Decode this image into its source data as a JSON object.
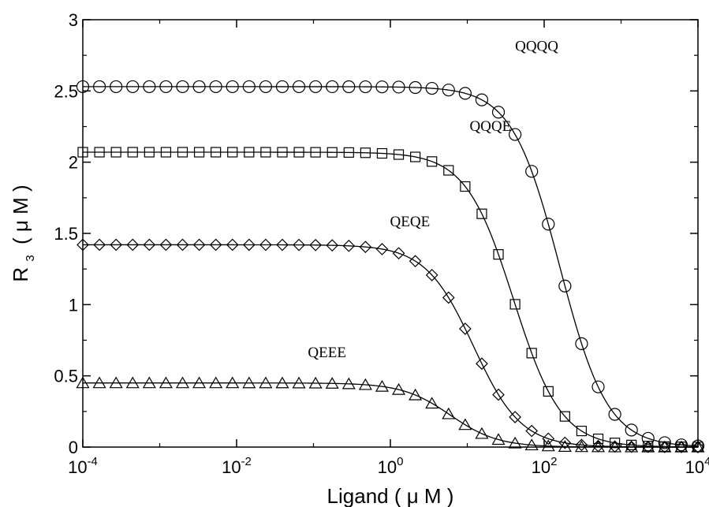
{
  "chart_data": {
    "type": "scatter",
    "xlabel": "Ligand ( μ M )",
    "ylabel": "R",
    "ylabel_sub": "3",
    "ylabel_unit": "( μ M )",
    "x_scale": "log",
    "xlim": [
      0.0001,
      10000
    ],
    "ylim": [
      0,
      3
    ],
    "grid": false,
    "legend": "none",
    "x_ticks": [
      {
        "value": 0.0001,
        "base": "10",
        "exp": "-4"
      },
      {
        "value": 0.01,
        "base": "10",
        "exp": "-2"
      },
      {
        "value": 1,
        "base": "10",
        "exp": "0"
      },
      {
        "value": 100,
        "base": "10",
        "exp": "2"
      },
      {
        "value": 10000,
        "base": "10",
        "exp": "4"
      }
    ],
    "y_ticks": [
      {
        "value": 0,
        "label": "0"
      },
      {
        "value": 0.5,
        "label": "0.5"
      },
      {
        "value": 1,
        "label": "1"
      },
      {
        "value": 1.5,
        "label": "1.5"
      },
      {
        "value": 2,
        "label": "2"
      },
      {
        "value": 2.5,
        "label": "2.5"
      },
      {
        "value": 3,
        "label": "3"
      }
    ],
    "series": [
      {
        "name": "QQQQ",
        "marker": "circle",
        "plateau": 2.53,
        "ec50": 160,
        "hill": 1.4,
        "label_x": 80,
        "label_y": 2.78
      },
      {
        "name": "QQQE",
        "marker": "square",
        "plateau": 2.07,
        "ec50": 40,
        "hill": 1.4,
        "label_x": 20,
        "label_y": 2.22
      },
      {
        "name": "QEQE",
        "marker": "diamond",
        "plateau": 1.42,
        "ec50": 12,
        "hill": 1.4,
        "label_x": 1.8,
        "label_y": 1.55
      },
      {
        "name": "QEEE",
        "marker": "triangle",
        "plateau": 0.45,
        "ec50": 6,
        "hill": 1.4,
        "label_x": 0.15,
        "label_y": 0.63
      }
    ]
  }
}
